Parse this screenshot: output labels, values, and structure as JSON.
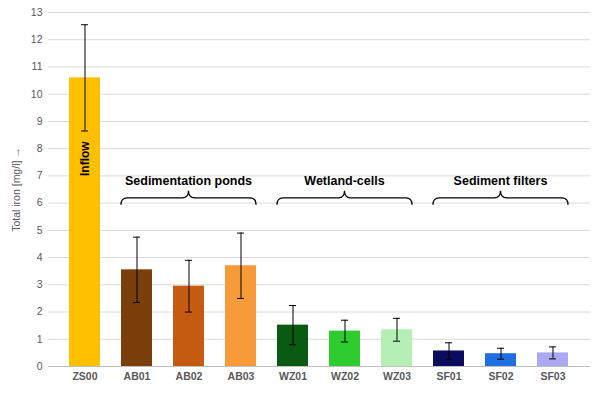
{
  "chart_data": {
    "type": "bar",
    "categories": [
      "ZS00",
      "AB01",
      "AB02",
      "AB03",
      "WZ01",
      "WZ02",
      "WZ03",
      "SF01",
      "SF02",
      "SF03"
    ],
    "values": [
      10.6,
      3.55,
      2.95,
      3.7,
      1.52,
      1.3,
      1.35,
      0.57,
      0.47,
      0.5
    ],
    "errors": [
      1.95,
      1.2,
      0.95,
      1.2,
      0.72,
      0.4,
      0.42,
      0.3,
      0.2,
      0.22
    ],
    "colors": [
      "#ffc000",
      "#7b3f0c",
      "#c55a11",
      "#f79a3a",
      "#0b5a12",
      "#2ecc2e",
      "#b4f0b4",
      "#0c0c5e",
      "#1f6fe0",
      "#aaaaf2"
    ],
    "ylabel": "Total iron [mg/l]",
    "ylim": [
      0,
      13
    ],
    "yticks": [
      0,
      1,
      2,
      3,
      4,
      5,
      6,
      7,
      8,
      9,
      10,
      11,
      12,
      13
    ],
    "grid": true,
    "annotations": [
      {
        "text": "Inflow",
        "category": "ZS00"
      }
    ],
    "groups": [
      {
        "label": "Sedimentation ponds",
        "categories": [
          "AB01",
          "AB02",
          "AB03"
        ]
      },
      {
        "label": "Wetland-cells",
        "categories": [
          "WZ01",
          "WZ02",
          "WZ03"
        ]
      },
      {
        "label": "Sediment filters",
        "categories": [
          "SF01",
          "SF02",
          "SF03"
        ]
      }
    ]
  }
}
